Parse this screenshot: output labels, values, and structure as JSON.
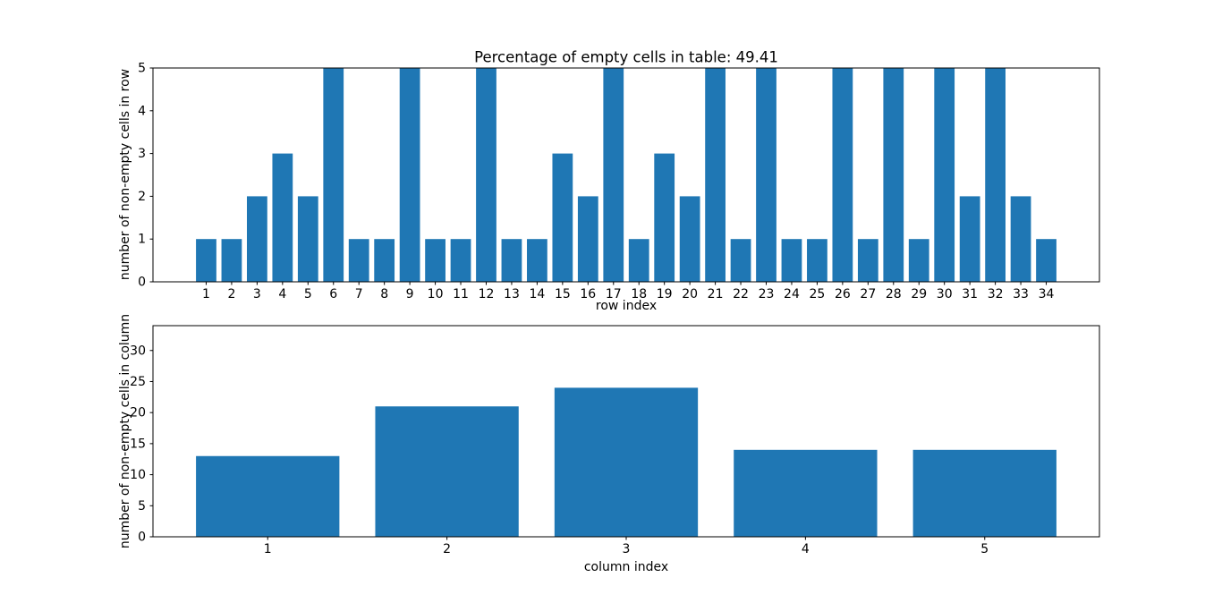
{
  "figure": {
    "background": "#ffffff",
    "frame_color": "#000000"
  },
  "chart_data": [
    {
      "type": "bar",
      "title": "Percentage of empty cells in table: 49.41",
      "xlabel": "row index",
      "ylabel": "number of non-empty cells in row",
      "categories": [
        1,
        2,
        3,
        4,
        5,
        6,
        7,
        8,
        9,
        10,
        11,
        12,
        13,
        14,
        15,
        16,
        17,
        18,
        19,
        20,
        21,
        22,
        23,
        24,
        25,
        26,
        27,
        28,
        29,
        30,
        31,
        32,
        33,
        34
      ],
      "values": [
        1,
        1,
        2,
        3,
        2,
        5,
        1,
        1,
        5,
        1,
        1,
        5,
        1,
        1,
        3,
        2,
        5,
        1,
        3,
        2,
        5,
        1,
        5,
        1,
        1,
        5,
        1,
        5,
        1,
        5,
        2,
        5,
        2,
        1
      ],
      "ylim": [
        0,
        5
      ],
      "yticks": [
        0,
        1,
        2,
        3,
        4,
        5
      ],
      "grid": false,
      "legend": null,
      "bar_color": "#1f77b4"
    },
    {
      "type": "bar",
      "title": "",
      "xlabel": "column index",
      "ylabel": "number of non-empty cells in column",
      "categories": [
        1,
        2,
        3,
        4,
        5
      ],
      "values": [
        13,
        21,
        24,
        14,
        14
      ],
      "ylim": [
        0,
        34
      ],
      "yticks": [
        0,
        5,
        10,
        15,
        20,
        25,
        30
      ],
      "grid": false,
      "legend": null,
      "bar_color": "#1f77b4"
    }
  ]
}
